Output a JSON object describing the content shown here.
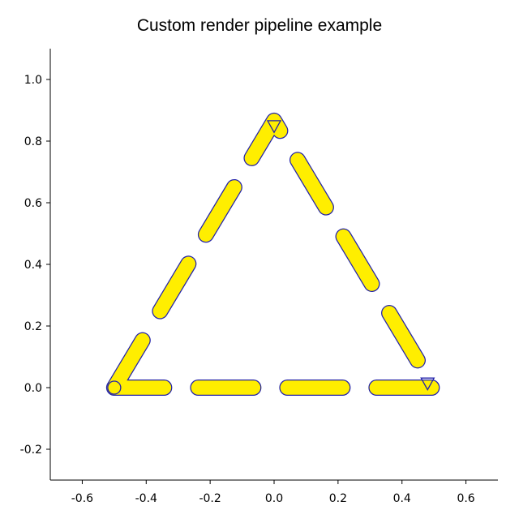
{
  "chart_data": {
    "type": "line",
    "title": "Custom render pipeline example",
    "xlabel": "",
    "ylabel": "",
    "xlim": [
      -0.7,
      0.7
    ],
    "ylim": [
      -0.3,
      1.1
    ],
    "xticks": [
      -0.6,
      -0.4,
      -0.2,
      0.0,
      0.2,
      0.4,
      0.6
    ],
    "xtick_labels": [
      "-0.6",
      "-0.4",
      "-0.2",
      "0.0",
      "0.2",
      "0.4",
      "0.6"
    ],
    "yticks": [
      -0.2,
      0.0,
      0.2,
      0.4,
      0.6,
      0.8,
      1.0
    ],
    "ytick_labels": [
      "-0.2",
      "0.0",
      "0.2",
      "0.4",
      "0.6",
      "0.8",
      "1.0"
    ],
    "grid": false,
    "series": [
      {
        "x": [
          -0.5,
          0.0,
          0.5,
          -0.5
        ],
        "y": [
          0.0,
          0.866,
          0.0,
          0.0
        ],
        "line_style": "dashed",
        "line_color": "#ffee00",
        "outline_color": "#2222aa",
        "marker": "triangle-down",
        "marker_points": [
          [
            0.0,
            0.845
          ],
          [
            0.48,
            0.01
          ]
        ]
      }
    ]
  }
}
